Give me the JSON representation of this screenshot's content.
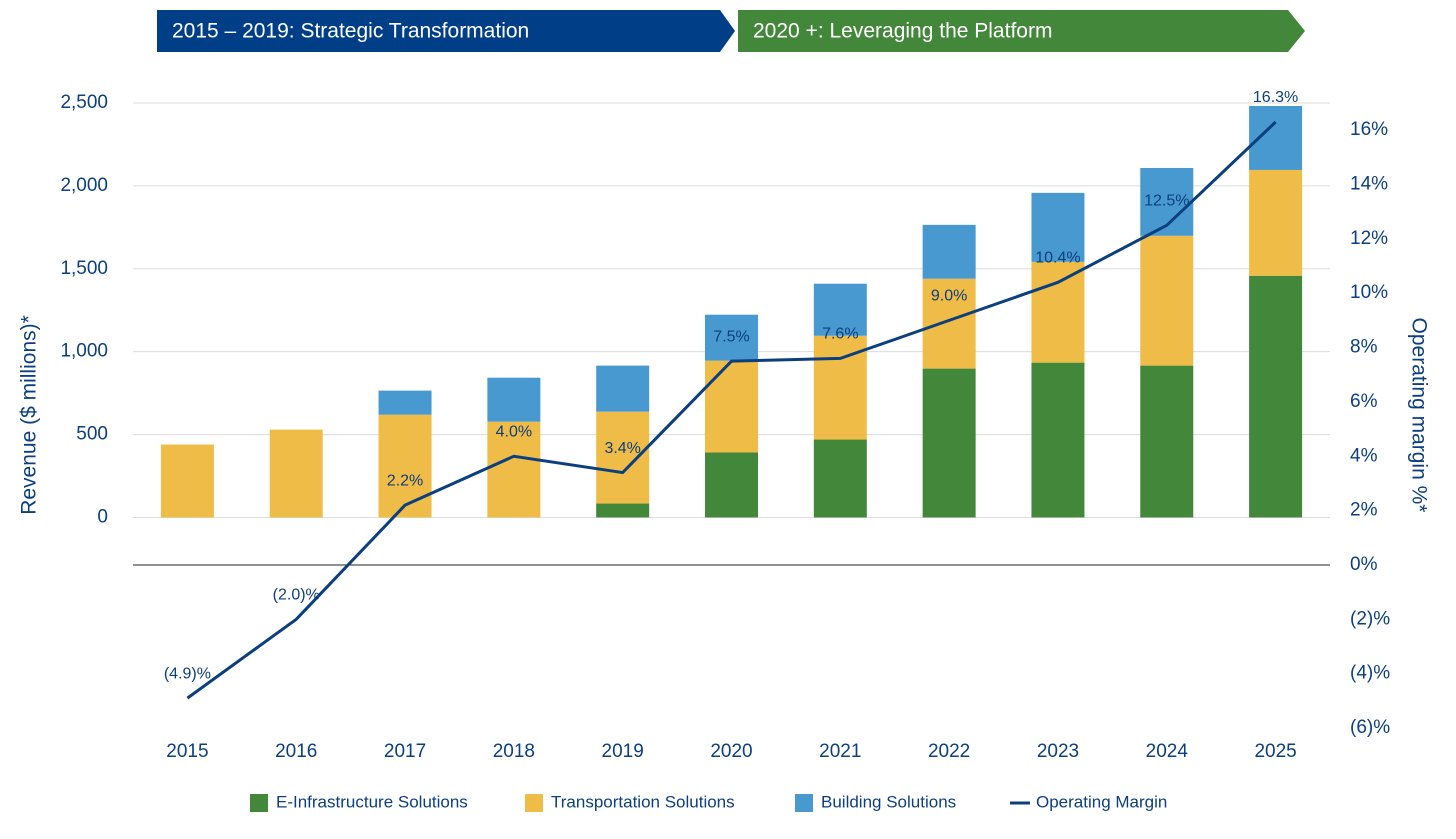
{
  "chart_data": {
    "type": "bar",
    "stacked": true,
    "annotations": [
      "2015 – 2019: Strategic Transformation",
      "2020 +: Leveraging the Platform"
    ],
    "y_label": "Revenue ($ millions)*",
    "y2_label": "Operating margin  %*",
    "categories": [
      "2015",
      "2016",
      "2017",
      "2018",
      "2019",
      "2020",
      "2021",
      "2022",
      "2023",
      "2024",
      "2025"
    ],
    "series": [
      {
        "name": "E-Infrastructure Solutions",
        "type": "bar",
        "color": "#43883a",
        "values": [
          0,
          0,
          0,
          0,
          84,
          392,
          470,
          898,
          934,
          916,
          1458
        ]
      },
      {
        "name": "Transportation Solutions",
        "type": "bar",
        "color": "#f0bc48",
        "values": [
          440,
          530,
          620,
          578,
          554,
          554,
          626,
          542,
          608,
          783,
          638
        ]
      },
      {
        "name": "Building Solutions",
        "type": "bar",
        "color": "#4899d0",
        "values": [
          0,
          0,
          145,
          265,
          278,
          277,
          314,
          325,
          416,
          409,
          386
        ]
      },
      {
        "name": "Operating Margin",
        "type": "line",
        "axis": "y2",
        "color": "#0c3f7e",
        "values": [
          -4.9,
          -2.0,
          2.2,
          4.0,
          3.4,
          7.5,
          7.6,
          9.0,
          10.4,
          12.5,
          16.3
        ],
        "value_labels": [
          "(4.9)%",
          "(2.0)%",
          "2.2%",
          "4.0%",
          "3.4%",
          "7.5%",
          "7.6%",
          "9.0%",
          "10.4%",
          "12.5%",
          "16.3%"
        ]
      }
    ],
    "ylim": [
      -1270,
      2500
    ],
    "yticks": [
      0,
      500,
      {
        "value": 1000,
        "label": "1,000"
      },
      {
        "value": 1500,
        "label": "1,500"
      },
      {
        "value": 2000,
        "label": "2,000"
      },
      {
        "value": 2500,
        "label": "2,500"
      }
    ],
    "y2lim": [
      -6,
      17
    ],
    "y2ticks": [
      {
        "value": -6,
        "label": "(6)%"
      },
      {
        "value": -4,
        "label": "(4)%"
      },
      {
        "value": -2,
        "label": "(2)%"
      },
      {
        "value": 0,
        "label": "0%"
      },
      {
        "value": 2,
        "label": "2%"
      },
      {
        "value": 4,
        "label": "4%"
      },
      {
        "value": 6,
        "label": "6%"
      },
      {
        "value": 8,
        "label": "8%"
      },
      {
        "value": 10,
        "label": "10%"
      },
      {
        "value": 12,
        "label": "12%"
      },
      {
        "value": 14,
        "label": "14%"
      },
      {
        "value": 16,
        "label": "16%"
      }
    ],
    "grid": true
  }
}
